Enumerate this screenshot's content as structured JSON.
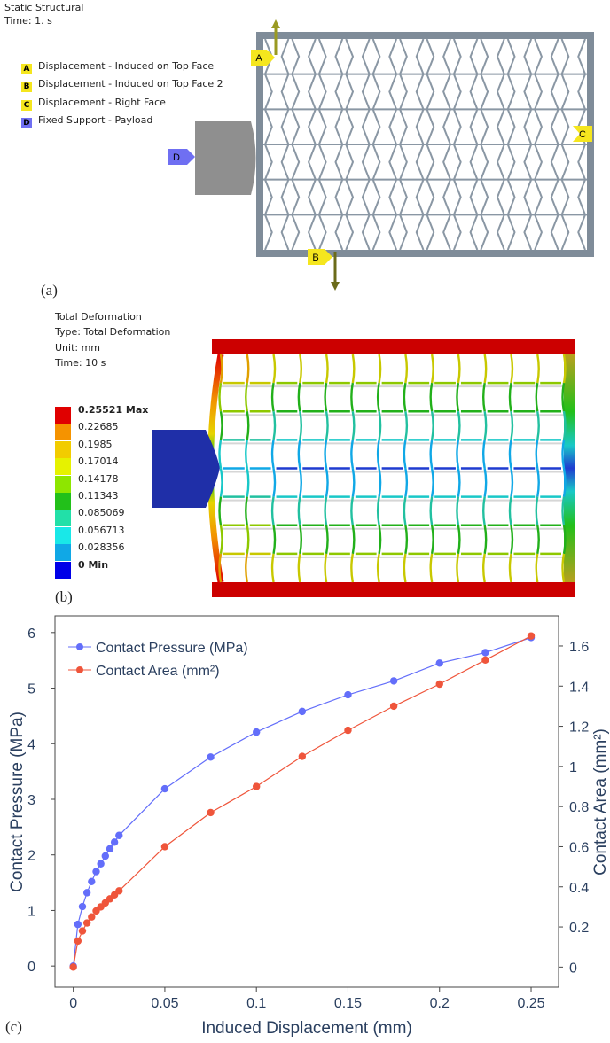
{
  "panel_a": {
    "header_line1": "Static Structural",
    "header_line2": "Time: 1. s",
    "legend": [
      {
        "letter": "A",
        "label": "Displacement - Induced on Top Face",
        "color": "#f5e61e"
      },
      {
        "letter": "B",
        "label": "Displacement - Induced on Top Face 2",
        "color": "#f5e61e"
      },
      {
        "letter": "C",
        "label": "Displacement - Right Face",
        "color": "#f5e61e"
      },
      {
        "letter": "D",
        "label": "Fixed Support - Payload",
        "color": "#6f6ff2"
      }
    ],
    "marker_a": "A",
    "marker_b": "B",
    "marker_c": "C",
    "marker_d": "D",
    "caption": "(a)"
  },
  "panel_b": {
    "header_line1": "Total Deformation",
    "header_line2": "Type: Total Deformation",
    "header_line3": "Unit: mm",
    "header_line4": "Time: 10 s",
    "colorbar": [
      {
        "label": "0.25521 Max",
        "color": "#e00000",
        "bold": true
      },
      {
        "label": "0.22685",
        "color": "#f59300",
        "bold": false
      },
      {
        "label": "0.1985",
        "color": "#f2cc00",
        "bold": false
      },
      {
        "label": "0.17014",
        "color": "#e6f200",
        "bold": false
      },
      {
        "label": "0.14178",
        "color": "#8ee600",
        "bold": false
      },
      {
        "label": "0.11343",
        "color": "#22c01a",
        "bold": false
      },
      {
        "label": "0.085069",
        "color": "#22e0a8",
        "bold": false
      },
      {
        "label": "0.056713",
        "color": "#19e8e8",
        "bold": false
      },
      {
        "label": "0.028356",
        "color": "#10a8e6",
        "bold": false
      },
      {
        "label": "0 Min",
        "color": "#0000e8",
        "bold": true
      }
    ],
    "caption": "(b)"
  },
  "panel_c": {
    "caption": "(c)",
    "chart_data": {
      "type": "line",
      "xlabel": "Induced Displacement (mm)",
      "ylabel": "Contact Pressure (MPa)",
      "y2label": "Contact Area (mm²)",
      "xlim": [
        -0.01,
        0.265
      ],
      "ylim": [
        -0.38,
        6.3
      ],
      "y2lim": [
        -0.1,
        1.75
      ],
      "x_ticks": [
        "0",
        "0.05",
        "0.1",
        "0.15",
        "0.2",
        "0.25"
      ],
      "x_tick_values": [
        0,
        0.05,
        0.1,
        0.15,
        0.2,
        0.25
      ],
      "y_ticks": [
        "0",
        "1",
        "2",
        "3",
        "4",
        "5",
        "6"
      ],
      "y_tick_values": [
        0,
        1,
        2,
        3,
        4,
        5,
        6
      ],
      "y2_ticks": [
        "0",
        "0.2",
        "0.4",
        "0.6",
        "0.8",
        "1",
        "1.2",
        "1.4",
        "1.6"
      ],
      "y2_tick_values": [
        0,
        0.2,
        0.4,
        0.6,
        0.8,
        1,
        1.2,
        1.4,
        1.6
      ],
      "legend_position": "top-left",
      "grid": false,
      "series": [
        {
          "name": "Contact Pressure (MPa)",
          "axis": "left",
          "color": "#636efa",
          "x": [
            0,
            0.0025,
            0.005,
            0.0075,
            0.01,
            0.0125,
            0.015,
            0.0175,
            0.02,
            0.0225,
            0.025,
            0.05,
            0.075,
            0.1,
            0.125,
            0.15,
            0.175,
            0.2,
            0.225,
            0.25
          ],
          "y": [
            0,
            0.75,
            1.07,
            1.32,
            1.52,
            1.7,
            1.84,
            1.98,
            2.11,
            2.23,
            2.35,
            3.19,
            3.76,
            4.21,
            4.58,
            4.88,
            5.13,
            5.45,
            5.64,
            5.91
          ]
        },
        {
          "name": "Contact Area (mm²)",
          "axis": "right",
          "color": "#ef553b",
          "x": [
            0,
            0.0025,
            0.005,
            0.0075,
            0.01,
            0.0125,
            0.015,
            0.0175,
            0.02,
            0.0225,
            0.025,
            0.05,
            0.075,
            0.1,
            0.125,
            0.15,
            0.175,
            0.2,
            0.225,
            0.25
          ],
          "y": [
            0,
            0.13,
            0.18,
            0.22,
            0.25,
            0.28,
            0.3,
            0.32,
            0.34,
            0.36,
            0.38,
            0.6,
            0.77,
            0.9,
            1.05,
            1.18,
            1.3,
            1.41,
            1.53,
            1.65
          ]
        }
      ]
    }
  }
}
